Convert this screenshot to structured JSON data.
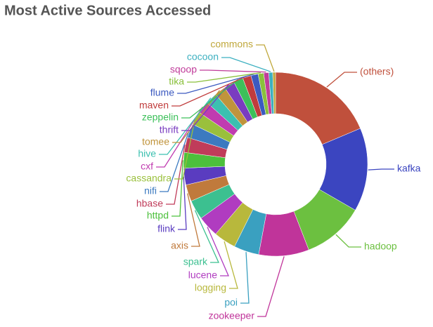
{
  "chart_data": {
    "type": "pie",
    "title": "Most Active Sources Accessed",
    "donut": true,
    "categories": [
      "(others)",
      "kafka",
      "hadoop",
      "zookeeper",
      "poi",
      "logging",
      "lucene",
      "spark",
      "axis",
      "flink",
      "httpd",
      "hbase",
      "nifi",
      "cassandra",
      "cxf",
      "hive",
      "tomee",
      "thrift",
      "zeppelin",
      "maven",
      "flume",
      "tika",
      "sqoop",
      "cocoon",
      "commons"
    ],
    "values": [
      19,
      15,
      11,
      9,
      4.5,
      4,
      3.8,
      3.5,
      3,
      3,
      2.8,
      2.7,
      2.5,
      2.4,
      2.2,
      2.1,
      2,
      1.9,
      1.7,
      1.5,
      1.3,
      1,
      0.9,
      0.7,
      0.5
    ],
    "colors": [
      "#c0503c",
      "#3b45c0",
      "#6cc040",
      "#c0349a",
      "#3aa0c0",
      "#b8b83c",
      "#b03cc0",
      "#3cc090",
      "#c07a3c",
      "#5a3cc0",
      "#4cc03c",
      "#c03c5a",
      "#3c7ac0",
      "#9ac03c",
      "#c03cb0",
      "#3cc0b0",
      "#c0943c",
      "#7a3cc0",
      "#3cc05a",
      "#c03c3c",
      "#3c5ac0",
      "#8ac03c",
      "#c03c9a",
      "#3cb0c0",
      "#c0a83c"
    ]
  }
}
